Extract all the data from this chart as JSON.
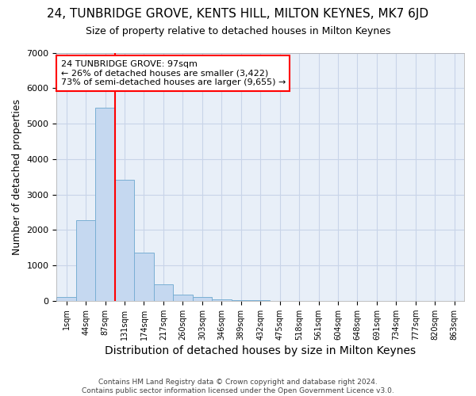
{
  "title": "24, TUNBRIDGE GROVE, KENTS HILL, MILTON KEYNES, MK7 6JD",
  "subtitle": "Size of property relative to detached houses in Milton Keynes",
  "xlabel": "Distribution of detached houses by size in Milton Keynes",
  "ylabel": "Number of detached properties",
  "footer_line1": "Contains HM Land Registry data © Crown copyright and database right 2024.",
  "footer_line2": "Contains public sector information licensed under the Open Government Licence v3.0.",
  "bin_labels": [
    "1sqm",
    "44sqm",
    "87sqm",
    "131sqm",
    "174sqm",
    "217sqm",
    "260sqm",
    "303sqm",
    "346sqm",
    "389sqm",
    "432sqm",
    "475sqm",
    "518sqm",
    "561sqm",
    "604sqm",
    "648sqm",
    "691sqm",
    "734sqm",
    "777sqm",
    "820sqm",
    "863sqm"
  ],
  "bar_values": [
    100,
    2280,
    5450,
    3420,
    1350,
    460,
    175,
    100,
    50,
    25,
    10,
    5,
    3,
    2,
    1,
    1,
    1,
    1,
    0,
    0,
    0
  ],
  "bar_color": "#c5d8f0",
  "bar_edgecolor": "#7aafd4",
  "grid_color": "#c8d4e8",
  "background_color": "#e8eff8",
  "annotation_line1": "24 TUNBRIDGE GROVE: 97sqm",
  "annotation_line2": "← 26% of detached houses are smaller (3,422)",
  "annotation_line3": "73% of semi-detached houses are larger (9,655) →",
  "annotation_box_edgecolor": "red",
  "vline_x": 2.5,
  "vline_color": "red",
  "ylim": [
    0,
    7000
  ],
  "yticks": [
    0,
    1000,
    2000,
    3000,
    4000,
    5000,
    6000,
    7000
  ],
  "title_fontsize": 11,
  "subtitle_fontsize": 9,
  "ylabel_fontsize": 9,
  "xlabel_fontsize": 10
}
